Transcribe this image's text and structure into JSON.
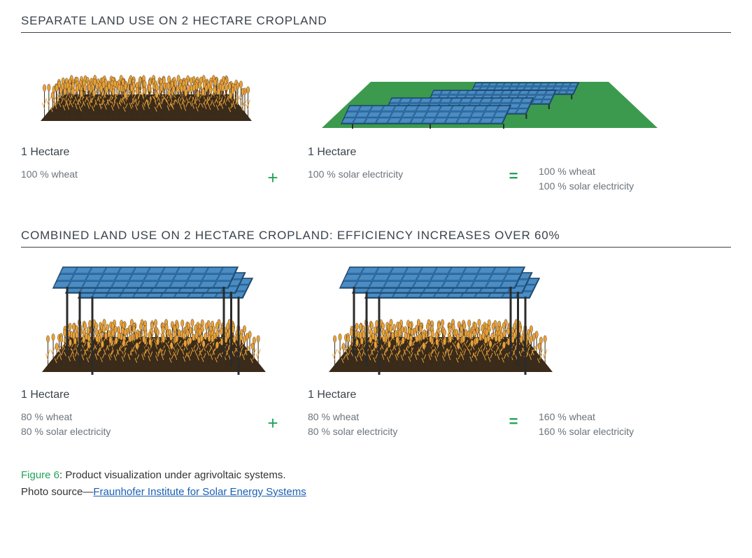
{
  "colors": {
    "text_heading": "#3a434c",
    "text_body": "#6a737b",
    "accent_green": "#24a35a",
    "link_blue": "#1a5fb4",
    "wheat_fill": "#e8a23a",
    "wheat_stroke": "#3a2b1a",
    "soil_dark": "#3a2b1a",
    "panel_fill": "#2f6fa8",
    "panel_stroke": "#1d4668",
    "panel_cell": "#4a8cc4",
    "grass_green": "#3c9a4e",
    "stand_dark": "#2b2b2b"
  },
  "sections": {
    "separate": {
      "title": "SEPARATE LAND USE ON 2 HECTARE CROPLAND",
      "left": {
        "area": "1 Hectare",
        "lines": [
          "100 % wheat"
        ]
      },
      "mid": {
        "area": "1 Hectare",
        "lines": [
          "100 % solar electricity"
        ]
      },
      "right": {
        "lines": [
          "100 % wheat",
          "100 % solar electricity"
        ]
      },
      "plus": "+",
      "equals": "="
    },
    "combined": {
      "title": "COMBINED LAND USE ON 2 HECTARE CROPLAND: EFFICIENCY INCREASES OVER 60%",
      "left": {
        "area": "1 Hectare",
        "lines": [
          "80 % wheat",
          "80 % solar electricity"
        ]
      },
      "mid": {
        "area": "1 Hectare",
        "lines": [
          "80 % wheat",
          "80 % solar electricity"
        ]
      },
      "right": {
        "lines": [
          "160 % wheat",
          "160 % solar electricity"
        ]
      },
      "plus": "+",
      "equals": "="
    }
  },
  "caption": {
    "figure_label": "Figure 6",
    "figure_text": ": Product visualization under agrivoltaic systems.",
    "source_prefix": "Photo source—",
    "source_link_text": "Fraunhofer Institute for Solar Energy Systems"
  },
  "typography": {
    "title_fontsize": 17,
    "area_fontsize": 16,
    "stat_fontsize": 14,
    "operator_fontsize": 26,
    "caption_fontsize": 15
  }
}
